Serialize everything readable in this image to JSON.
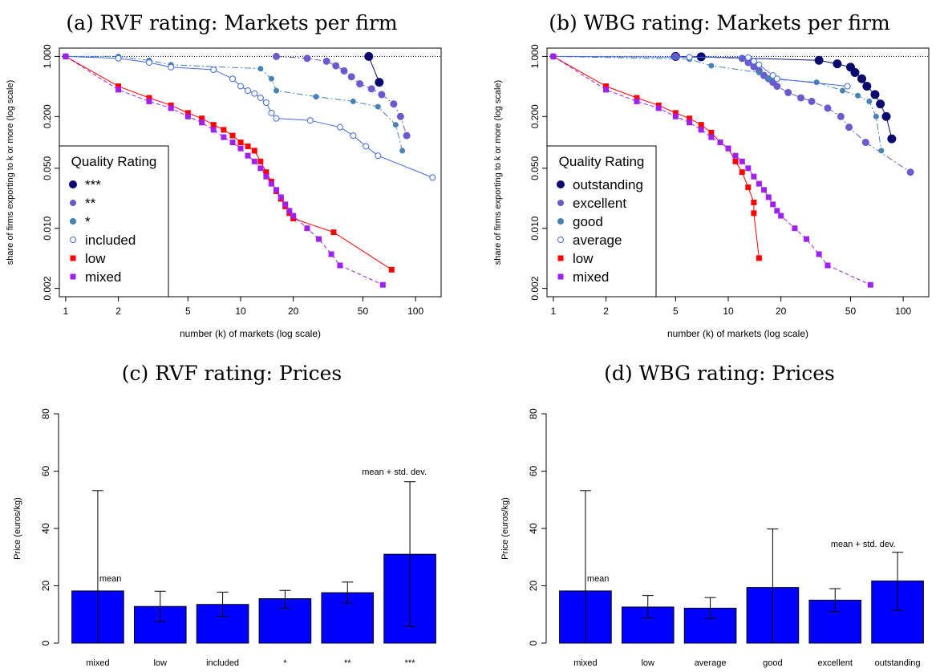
{
  "colors": {
    "top": "#0a0a6e",
    "excellent": "#6a5acd",
    "good": "#4682b4",
    "included": "#4169e1",
    "low": "#ff0000",
    "mixed": "#a020f0",
    "bar": "#0000ff"
  },
  "chart_data": [
    {
      "id": "a",
      "type": "scatter",
      "title": "(a) RVF rating: Markets per firm",
      "xlabel": "number (k) of markets (log scale)",
      "ylabel": "share of firms exporting to k or more (log scale)",
      "log_x": true,
      "log_y": true,
      "xlim": [
        0.92,
        140
      ],
      "ylim": [
        0.0016,
        1.25
      ],
      "xticks": [
        1,
        2,
        5,
        10,
        20,
        50,
        100
      ],
      "yticks": [
        0.002,
        0.01,
        0.05,
        0.2,
        1.0
      ],
      "ytick_labels": [
        "0.002",
        "0.010",
        "0.050",
        "0.200",
        "1.000"
      ],
      "reference_line_y": 1.0,
      "legend": {
        "title": "Quality Rating",
        "position": "bottom-left"
      },
      "series": [
        {
          "name": "***",
          "color_key": "top",
          "marker": "circle",
          "size": "large",
          "line": "solid",
          "points": [
            [
              54,
              1.0
            ],
            [
              62,
              0.5
            ]
          ]
        },
        {
          "name": "**",
          "color_key": "excellent",
          "marker": "circle",
          "size": "medium",
          "line": "dashdot",
          "points": [
            [
              16,
              1.0
            ],
            [
              24,
              0.95
            ],
            [
              31,
              0.88
            ],
            [
              35,
              0.78
            ],
            [
              39,
              0.68
            ],
            [
              43,
              0.58
            ],
            [
              48,
              0.48
            ],
            [
              56,
              0.42
            ],
            [
              64,
              0.36
            ],
            [
              75,
              0.28
            ],
            [
              82,
              0.2
            ],
            [
              89,
              0.12
            ]
          ]
        },
        {
          "name": "*",
          "color_key": "good",
          "marker": "circle",
          "size": "small",
          "line": "dashdot",
          "points": [
            [
              1,
              1.0
            ],
            [
              2,
              1.0
            ],
            [
              3,
              0.9
            ],
            [
              4,
              0.8
            ],
            [
              13,
              0.72
            ],
            [
              15,
              0.55
            ],
            [
              16,
              0.4
            ],
            [
              27,
              0.34
            ],
            [
              44,
              0.3
            ],
            [
              61,
              0.26
            ],
            [
              77,
              0.16
            ],
            [
              84,
              0.08
            ]
          ]
        },
        {
          "name": "included",
          "color_key": "included",
          "marker": "open-circle",
          "size": "small",
          "line": "solid",
          "points": [
            [
              1,
              1.0
            ],
            [
              2,
              0.95
            ],
            [
              3,
              0.85
            ],
            [
              4,
              0.75
            ],
            [
              7,
              0.7
            ],
            [
              9,
              0.55
            ],
            [
              10,
              0.45
            ],
            [
              11,
              0.4
            ],
            [
              12,
              0.37
            ],
            [
              13,
              0.33
            ],
            [
              14,
              0.29
            ],
            [
              15,
              0.22
            ],
            [
              16,
              0.19
            ],
            [
              25,
              0.18
            ],
            [
              37,
              0.15
            ],
            [
              44,
              0.12
            ],
            [
              52,
              0.09
            ],
            [
              61,
              0.07
            ],
            [
              125,
              0.039
            ]
          ]
        },
        {
          "name": "low",
          "color_key": "low",
          "marker": "square",
          "size": "small",
          "line": "solid",
          "points": [
            [
              1,
              1.0
            ],
            [
              2,
              0.45
            ],
            [
              3,
              0.33
            ],
            [
              4,
              0.27
            ],
            [
              5,
              0.22
            ],
            [
              6,
              0.19
            ],
            [
              7,
              0.16
            ],
            [
              8,
              0.14
            ],
            [
              9,
              0.12
            ],
            [
              10,
              0.1
            ],
            [
              11,
              0.09
            ],
            [
              12,
              0.08
            ],
            [
              13,
              0.06
            ],
            [
              14,
              0.045
            ],
            [
              15,
              0.035
            ],
            [
              16,
              0.027
            ],
            [
              17,
              0.022
            ],
            [
              18,
              0.018
            ],
            [
              19,
              0.015
            ],
            [
              20,
              0.013
            ],
            [
              34,
              0.009
            ],
            [
              73,
              0.0033
            ]
          ]
        },
        {
          "name": "mixed",
          "color_key": "mixed",
          "marker": "square",
          "size": "small",
          "line": "dashed",
          "points": [
            [
              1,
              1.0
            ],
            [
              2,
              0.41
            ],
            [
              3,
              0.3
            ],
            [
              4,
              0.25
            ],
            [
              5,
              0.2
            ],
            [
              6,
              0.17
            ],
            [
              7,
              0.14
            ],
            [
              8,
              0.115
            ],
            [
              9,
              0.1
            ],
            [
              10,
              0.085
            ],
            [
              11,
              0.07
            ],
            [
              12,
              0.06
            ],
            [
              13,
              0.05
            ],
            [
              14,
              0.04
            ],
            [
              15,
              0.033
            ],
            [
              16,
              0.028
            ],
            [
              17,
              0.023
            ],
            [
              18,
              0.019
            ],
            [
              19,
              0.016
            ],
            [
              20,
              0.014
            ],
            [
              24,
              0.01
            ],
            [
              28,
              0.0075
            ],
            [
              33,
              0.005
            ],
            [
              37,
              0.0037
            ],
            [
              65,
              0.0022
            ]
          ]
        }
      ]
    },
    {
      "id": "b",
      "type": "scatter",
      "title": "(b) WBG rating: Markets per firm",
      "xlabel": "number (k) of markets (log scale)",
      "ylabel": "share of firms exporting to k or more (log scale)",
      "log_x": true,
      "log_y": true,
      "xlim": [
        0.92,
        140
      ],
      "ylim": [
        0.0016,
        1.25
      ],
      "xticks": [
        1,
        2,
        5,
        10,
        20,
        50,
        100
      ],
      "yticks": [
        0.002,
        0.01,
        0.05,
        0.2,
        1.0
      ],
      "ytick_labels": [
        "0.002",
        "0.010",
        "0.050",
        "0.200",
        "1.000"
      ],
      "reference_line_y": 1.0,
      "legend": {
        "title": "Quality Rating",
        "position": "bottom-left"
      },
      "series": [
        {
          "name": "outstanding",
          "color_key": "top",
          "marker": "circle",
          "size": "large",
          "line": "solid",
          "points": [
            [
              5,
              1.0
            ],
            [
              7,
              0.99
            ],
            [
              33,
              0.9
            ],
            [
              42,
              0.82
            ],
            [
              50,
              0.75
            ],
            [
              53,
              0.65
            ],
            [
              58,
              0.55
            ],
            [
              62,
              0.45
            ],
            [
              69,
              0.36
            ],
            [
              74,
              0.28
            ],
            [
              80,
              0.2
            ],
            [
              86,
              0.11
            ]
          ]
        },
        {
          "name": "excellent",
          "color_key": "excellent",
          "marker": "circle",
          "size": "medium",
          "line": "dashdot",
          "points": [
            [
              5,
              1.0
            ],
            [
              12,
              0.95
            ],
            [
              13,
              0.85
            ],
            [
              14,
              0.76
            ],
            [
              15,
              0.68
            ],
            [
              16,
              0.6
            ],
            [
              17,
              0.55
            ],
            [
              18,
              0.5
            ],
            [
              19,
              0.45
            ],
            [
              22,
              0.38
            ],
            [
              26,
              0.33
            ],
            [
              30,
              0.3
            ],
            [
              37,
              0.25
            ],
            [
              44,
              0.2
            ],
            [
              49,
              0.15
            ],
            [
              61,
              0.1
            ],
            [
              110,
              0.045
            ]
          ]
        },
        {
          "name": "good",
          "color_key": "good",
          "marker": "circle",
          "size": "small",
          "line": "dashdot",
          "points": [
            [
              1,
              1.0
            ],
            [
              6,
              0.93
            ],
            [
              8,
              0.78
            ],
            [
              15,
              0.65
            ],
            [
              17,
              0.55
            ],
            [
              32,
              0.5
            ],
            [
              45,
              0.4
            ],
            [
              55,
              0.35
            ],
            [
              64,
              0.3
            ],
            [
              70,
              0.2
            ],
            [
              75,
              0.08
            ]
          ]
        },
        {
          "name": "average",
          "color_key": "included",
          "marker": "open-circle",
          "size": "small",
          "line": "solid",
          "points": [
            [
              1,
              1.0
            ],
            [
              6,
              0.98
            ],
            [
              13,
              0.97
            ],
            [
              14,
              0.88
            ],
            [
              15,
              0.8
            ],
            [
              18,
              0.6
            ],
            [
              19,
              0.55
            ],
            [
              48,
              0.45
            ]
          ]
        },
        {
          "name": "low",
          "color_key": "low",
          "marker": "square",
          "size": "small",
          "line": "solid",
          "points": [
            [
              1,
              1.0
            ],
            [
              2,
              0.45
            ],
            [
              3,
              0.33
            ],
            [
              4,
              0.27
            ],
            [
              5,
              0.22
            ],
            [
              6,
              0.19
            ],
            [
              7,
              0.16
            ],
            [
              8,
              0.13
            ],
            [
              9,
              0.1
            ],
            [
              10,
              0.085
            ],
            [
              11,
              0.06
            ],
            [
              12,
              0.045
            ],
            [
              13,
              0.03
            ],
            [
              14,
              0.02
            ],
            [
              14,
              0.015
            ],
            [
              15,
              0.0045
            ]
          ]
        },
        {
          "name": "mixed",
          "color_key": "mixed",
          "marker": "square",
          "size": "small",
          "line": "dashed",
          "points": [
            [
              1,
              1.0
            ],
            [
              2,
              0.41
            ],
            [
              3,
              0.3
            ],
            [
              4,
              0.25
            ],
            [
              5,
              0.2
            ],
            [
              6,
              0.17
            ],
            [
              7,
              0.14
            ],
            [
              8,
              0.115
            ],
            [
              9,
              0.1
            ],
            [
              10,
              0.085
            ],
            [
              11,
              0.07
            ],
            [
              12,
              0.06
            ],
            [
              13,
              0.05
            ],
            [
              14,
              0.04
            ],
            [
              15,
              0.033
            ],
            [
              16,
              0.028
            ],
            [
              17,
              0.023
            ],
            [
              18,
              0.019
            ],
            [
              19,
              0.016
            ],
            [
              20,
              0.014
            ],
            [
              24,
              0.01
            ],
            [
              28,
              0.0075
            ],
            [
              33,
              0.005
            ],
            [
              37,
              0.0037
            ],
            [
              65,
              0.0022
            ]
          ]
        }
      ]
    },
    {
      "id": "c",
      "type": "bar",
      "title": "(c) RVF rating: Prices",
      "xlabel": "",
      "ylabel": "Price (euros/kg)",
      "ylim": [
        0,
        80
      ],
      "yticks": [
        0,
        20,
        40,
        60,
        80
      ],
      "categories": [
        "mixed",
        "low",
        "included",
        "*",
        "**",
        "***"
      ],
      "values": [
        18.2,
        12.8,
        13.5,
        15.5,
        17.6,
        31.0
      ],
      "err_low": [
        0,
        7.5,
        9.4,
        12.2,
        14.0,
        5.8
      ],
      "err_high": [
        53.2,
        18.1,
        17.8,
        18.4,
        21.3,
        56.3
      ],
      "annotations": [
        {
          "text": "mean",
          "x_index": 0,
          "y": 21.5
        },
        {
          "text": "mean + std. dev.",
          "x_index": 4.75,
          "y": 58.8
        }
      ]
    },
    {
      "id": "d",
      "type": "bar",
      "title": "(d) WBG rating: Prices",
      "xlabel": "",
      "ylabel": "Price (euros/kg)",
      "ylim": [
        0,
        80
      ],
      "yticks": [
        0,
        20,
        40,
        60,
        80
      ],
      "categories": [
        "mixed",
        "low",
        "average",
        "good",
        "excellent",
        "outstanding"
      ],
      "values": [
        18.2,
        12.6,
        12.2,
        19.4,
        15.0,
        21.7
      ],
      "err_low": [
        0,
        8.8,
        8.6,
        0,
        11.0,
        11.4
      ],
      "err_high": [
        53.2,
        16.6,
        15.9,
        39.8,
        19.0,
        31.7
      ],
      "annotations": [
        {
          "text": "mean",
          "x_index": 0,
          "y": 21.5
        },
        {
          "text": "mean + std. dev.",
          "x_index": 4.45,
          "y": 33.5
        }
      ]
    }
  ]
}
